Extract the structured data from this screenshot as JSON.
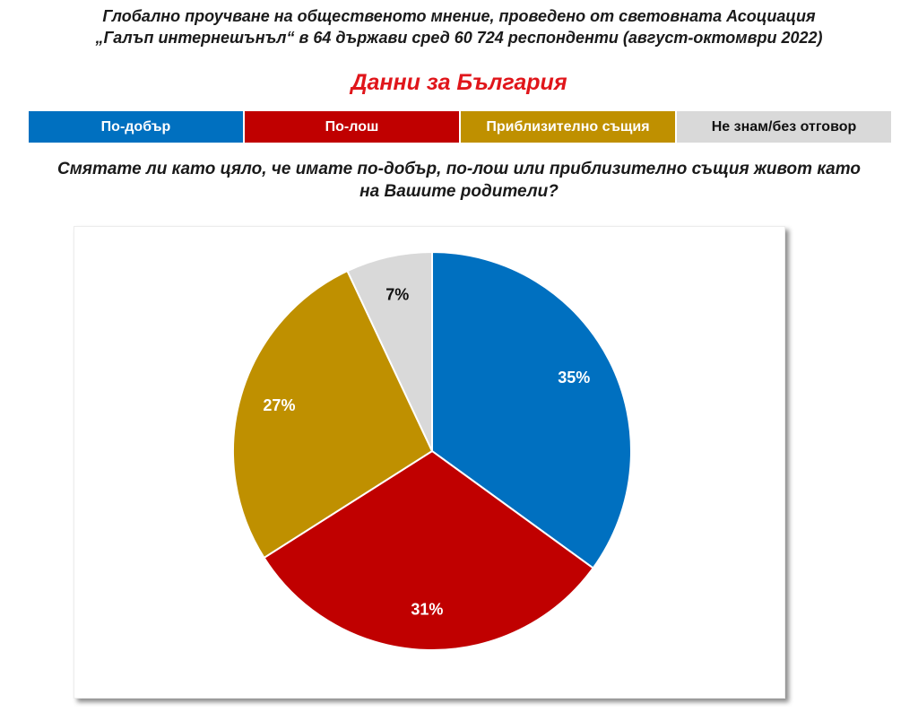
{
  "chart_data": {
    "type": "pie",
    "title": [
      "Глобално проучване на общественото мнение, проведено от световната Асоциация",
      "„Галъп интернешънъл“ в 64 държави сред 60 724 респонденти (август-октомври 2022)"
    ],
    "subtitle": "Данни за България",
    "question": [
      "Смятате ли като цяло, че имате по-добър, по-лош или приблизително същия живот като",
      "на Вашите родители?"
    ],
    "categories": [
      "По-добър",
      "По-лош",
      "Приблизително същия",
      "Не знам/без отговор"
    ],
    "colors": [
      "#0070c0",
      "#c00000",
      "#bf9000",
      "#d9d9d9"
    ],
    "values": [
      35,
      31,
      27,
      7
    ],
    "value_labels": [
      "35%",
      "31%",
      "27%",
      "7%"
    ]
  }
}
